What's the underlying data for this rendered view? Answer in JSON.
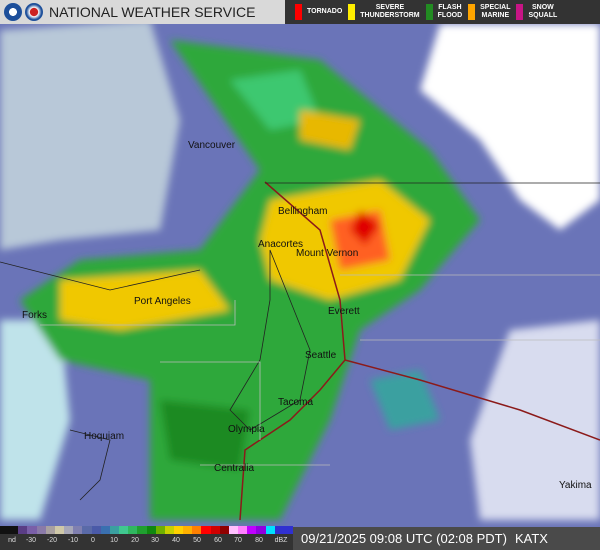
{
  "header": {
    "title": "NATIONAL WEATHER SERVICE",
    "logos": [
      "noaa-logo",
      "nws-logo"
    ]
  },
  "warnings": [
    {
      "label": "TORNADO",
      "color": "#ff0000"
    },
    {
      "label": "SEVERE\nTHUNDERSTORM",
      "color": "#ffee00"
    },
    {
      "label": "FLASH\nFLOOD",
      "color": "#228b22"
    },
    {
      "label": "SPECIAL\nMARINE",
      "color": "#ffa500"
    },
    {
      "label": "SNOW\nSQUALL",
      "color": "#c71585"
    }
  ],
  "cities": [
    "Vancouver",
    "Bellingham",
    "Anacortes",
    "Mount Vernon",
    "Port Angeles",
    "Forks",
    "Everett",
    "Seattle",
    "Tacoma",
    "Olympia",
    "Hoquiam",
    "Centralia",
    "Yakima"
  ],
  "legend": {
    "ticks": [
      "nd",
      "-30",
      "-20",
      "-10",
      "0",
      "10",
      "20",
      "30",
      "40",
      "50",
      "60",
      "70",
      "80",
      "dBZ"
    ],
    "colors": [
      "#111",
      "#111",
      "#5a3d85",
      "#7a5fa8",
      "#8a7aa8",
      "#a8a0a0",
      "#cfc8a8",
      "#a8a8b8",
      "#8080b0",
      "#5a6aa8",
      "#4a5aa8",
      "#3a70b0",
      "#3aa0a0",
      "#40c890",
      "#30b860",
      "#20a030",
      "#108810",
      "#70b000",
      "#c8d000",
      "#ffd000",
      "#ffb000",
      "#ff8000",
      "#ff0000",
      "#d00000",
      "#900000",
      "#ffc0ff",
      "#ff80ff",
      "#c000ff",
      "#9000e0",
      "#00e0ff",
      "#3030d0",
      "#3030d0"
    ]
  },
  "timestamp": {
    "time": "09/21/2025 09:08 UTC (02:08 PDT)",
    "station": "KATX"
  }
}
